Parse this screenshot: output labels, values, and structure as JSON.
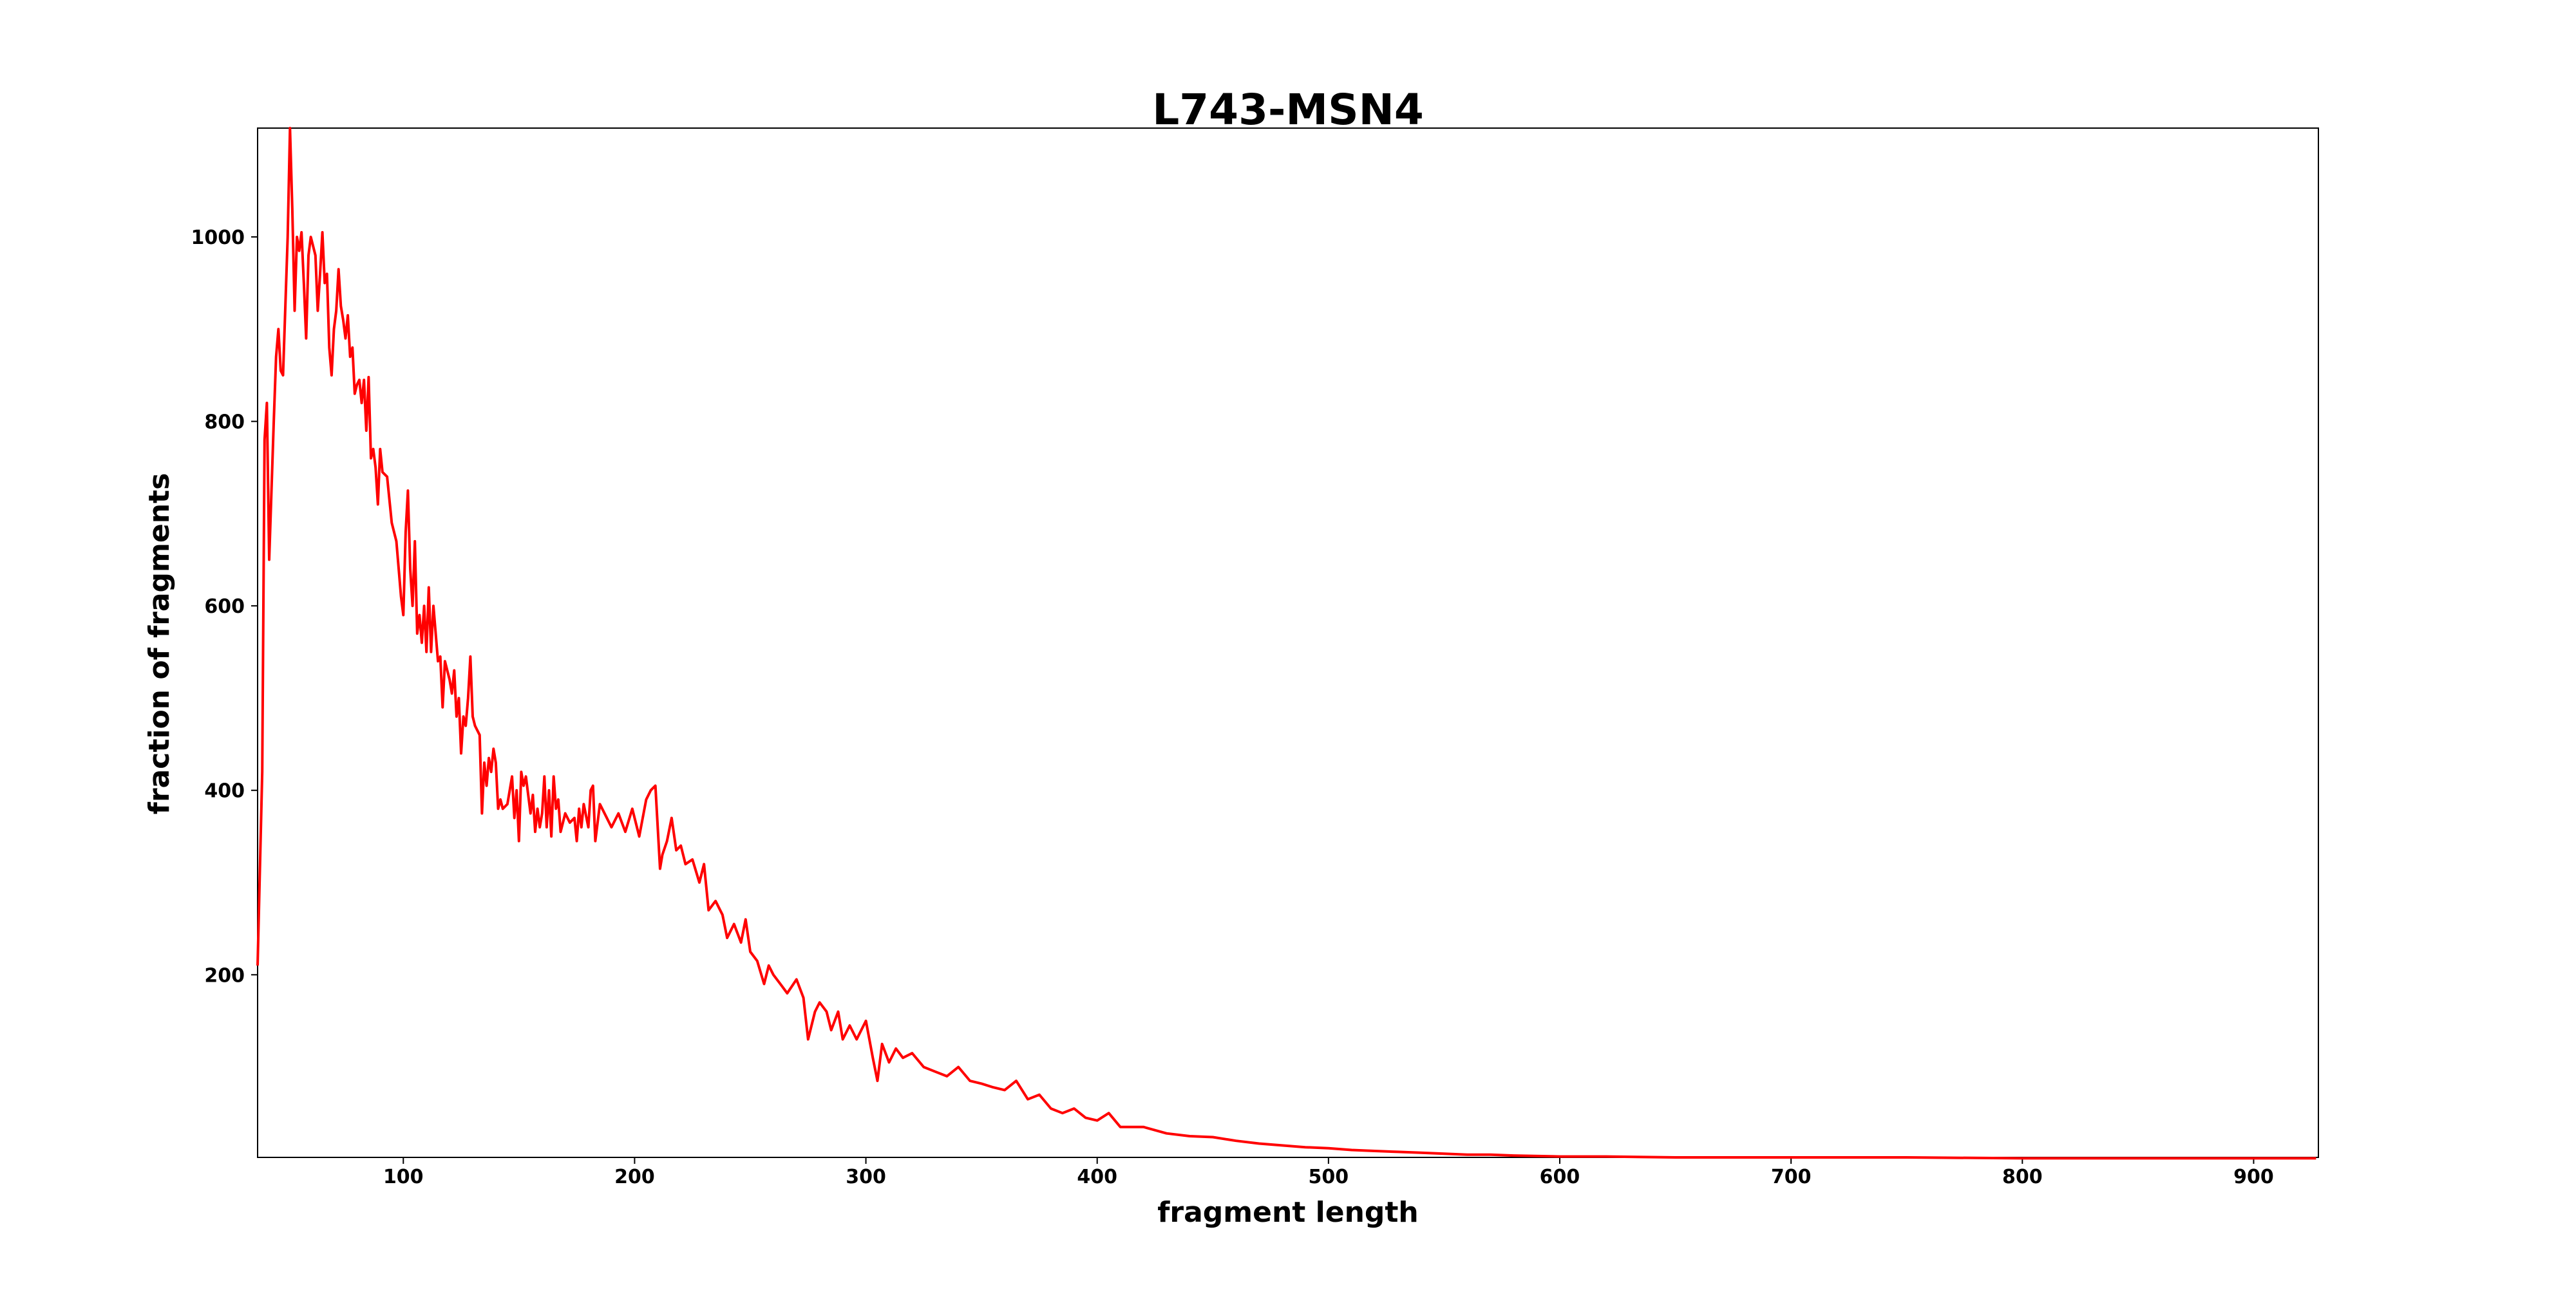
{
  "chart_data": {
    "type": "line",
    "title": "L743-MSN4",
    "xlabel": "fragment length",
    "ylabel": "fraction of fragments",
    "xlim": [
      37,
      928
    ],
    "ylim": [
      2,
      1118
    ],
    "xticks": [
      100,
      200,
      300,
      400,
      500,
      600,
      700,
      800,
      900
    ],
    "yticks": [
      200,
      400,
      600,
      800,
      1000
    ],
    "grid": false,
    "line_color": "#ff0000",
    "x": [
      37,
      39,
      40,
      41,
      42,
      44,
      45,
      46,
      47,
      48,
      50,
      51,
      52,
      53,
      54,
      55,
      56,
      57,
      58,
      59,
      60,
      62,
      63,
      64,
      65,
      66,
      67,
      68,
      69,
      70,
      71,
      72,
      73,
      74,
      75,
      76,
      77,
      78,
      79,
      80,
      81,
      82,
      83,
      84,
      85,
      86,
      87,
      88,
      89,
      90,
      91,
      93,
      95,
      97,
      99,
      100,
      101,
      102,
      103,
      104,
      105,
      106,
      107,
      108,
      109,
      110,
      111,
      112,
      113,
      115,
      116,
      117,
      118,
      120,
      121,
      122,
      123,
      124,
      125,
      126,
      127,
      128,
      129,
      130,
      131,
      133,
      134,
      135,
      136,
      137,
      138,
      139,
      140,
      141,
      142,
      143,
      145,
      147,
      148,
      149,
      150,
      151,
      152,
      153,
      155,
      156,
      157,
      158,
      159,
      160,
      161,
      162,
      163,
      164,
      165,
      166,
      167,
      168,
      170,
      172,
      174,
      175,
      176,
      177,
      178,
      180,
      181,
      182,
      183,
      185,
      188,
      190,
      193,
      196,
      199,
      202,
      205,
      207,
      209,
      211,
      212,
      214,
      216,
      218,
      220,
      222,
      225,
      228,
      230,
      232,
      235,
      238,
      240,
      243,
      246,
      248,
      250,
      253,
      256,
      258,
      260,
      263,
      266,
      270,
      273,
      275,
      278,
      280,
      283,
      285,
      288,
      290,
      293,
      296,
      300,
      303,
      305,
      307,
      310,
      313,
      316,
      320,
      325,
      330,
      335,
      340,
      345,
      350,
      355,
      360,
      365,
      370,
      375,
      380,
      385,
      390,
      395,
      400,
      405,
      410,
      420,
      430,
      440,
      450,
      460,
      470,
      480,
      490,
      500,
      510,
      520,
      530,
      540,
      550,
      560,
      570,
      580,
      600,
      620,
      650,
      700,
      750,
      800,
      850,
      927
    ],
    "y": [
      210,
      420,
      780,
      820,
      650,
      800,
      870,
      900,
      855,
      850,
      1000,
      1118,
      1030,
      920,
      1000,
      985,
      1005,
      950,
      890,
      980,
      1000,
      980,
      920,
      960,
      1005,
      950,
      960,
      880,
      850,
      900,
      920,
      965,
      925,
      910,
      890,
      915,
      870,
      880,
      830,
      840,
      845,
      820,
      845,
      790,
      848,
      760,
      770,
      750,
      710,
      770,
      745,
      740,
      690,
      670,
      610,
      590,
      680,
      725,
      640,
      600,
      670,
      570,
      590,
      560,
      600,
      550,
      620,
      550,
      600,
      540,
      545,
      490,
      540,
      520,
      505,
      530,
      480,
      500,
      440,
      480,
      470,
      500,
      545,
      480,
      470,
      460,
      375,
      430,
      405,
      435,
      420,
      445,
      430,
      380,
      390,
      380,
      385,
      415,
      370,
      400,
      345,
      420,
      405,
      415,
      375,
      395,
      355,
      380,
      360,
      375,
      415,
      360,
      400,
      350,
      415,
      380,
      390,
      355,
      375,
      365,
      370,
      345,
      380,
      360,
      385,
      360,
      400,
      405,
      345,
      385,
      370,
      360,
      375,
      355,
      380,
      350,
      390,
      400,
      405,
      315,
      330,
      345,
      370,
      335,
      340,
      320,
      325,
      300,
      320,
      270,
      280,
      265,
      240,
      255,
      235,
      260,
      225,
      215,
      190,
      210,
      200,
      190,
      180,
      195,
      175,
      130,
      160,
      170,
      160,
      140,
      160,
      130,
      145,
      130,
      150,
      110,
      85,
      125,
      105,
      120,
      110,
      115,
      100,
      95,
      90,
      100,
      85,
      82,
      78,
      75,
      85,
      65,
      70,
      55,
      50,
      55,
      45,
      42,
      50,
      35,
      35,
      28,
      25,
      24,
      20,
      17,
      15,
      13,
      12,
      10,
      9,
      8,
      7,
      6,
      5,
      5,
      4,
      3,
      3,
      2,
      2,
      2,
      1,
      1,
      1
    ]
  }
}
